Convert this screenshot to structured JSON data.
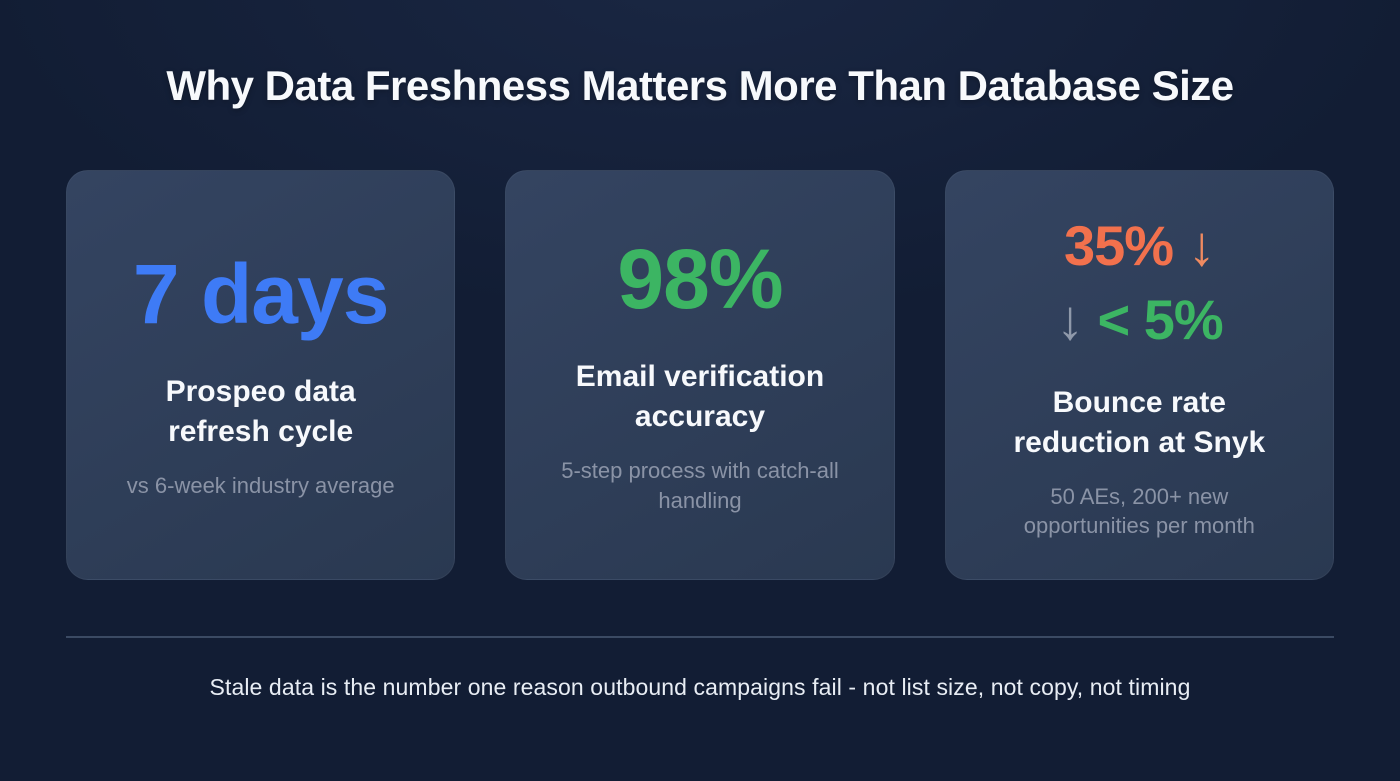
{
  "page": {
    "title": "Why Data Freshness Matters More Than Database Size",
    "footer": "Stale data is the number one reason outbound campaigns fail - not list size, not copy, not timing"
  },
  "cards": [
    {
      "stat": "7 days",
      "heading": "Prospeo data refresh cycle",
      "subtext": "vs 6-week industry average"
    },
    {
      "stat": "98%",
      "heading": "Email verification accuracy",
      "subtext": "5-step process with catch-all handling"
    },
    {
      "stat_line1": {
        "value": "35%",
        "arrow": "↓"
      },
      "stat_line2": {
        "arrow": "↓",
        "value": "< 5%"
      },
      "heading": "Bounce rate reduction at Snyk",
      "subtext": "50 AEs, 200+ new opportunities per month"
    }
  ],
  "colors": {
    "bg": "#121d34",
    "card-top": "#344461",
    "card-bottom": "#2a3951",
    "blue": "#3e7bf6",
    "green": "#3cb563",
    "orange": "#f2714d",
    "orange-light": "#ef8a60",
    "gray-arrow": "#8f99aa",
    "muted": "#8a93a6",
    "divider": "#3b4a63"
  }
}
